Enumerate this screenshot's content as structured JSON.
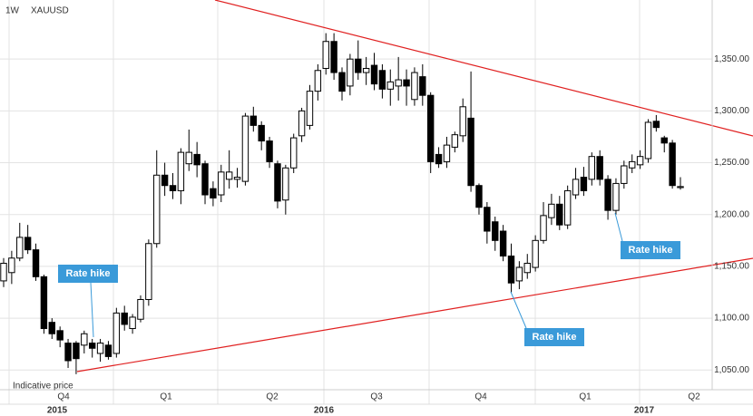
{
  "chart_data": {
    "type": "candlestick",
    "interval": "1W",
    "symbol": "XAUUSD",
    "note": "Indicative price",
    "quarters": [
      "Q4",
      "Q1",
      "Q2",
      "Q3",
      "Q4",
      "Q1",
      "Q2"
    ],
    "years": [
      "2015",
      "2016",
      "2017"
    ],
    "annotations": [
      "Rate hike",
      "Rate hike",
      "Rate hike"
    ],
    "categories": [
      null,
      null,
      null,
      null,
      null,
      null,
      null,
      null,
      null,
      null,
      null,
      null,
      null,
      null,
      null,
      null,
      null,
      null,
      null,
      null,
      null,
      null,
      null,
      null,
      null,
      null,
      null,
      null,
      null,
      null,
      null,
      null,
      null,
      null,
      null,
      null,
      null,
      null,
      null,
      null,
      null,
      null,
      null,
      null,
      null,
      null,
      null,
      null,
      null,
      null,
      null,
      null,
      null,
      null,
      null,
      null,
      null,
      null,
      null,
      null,
      null,
      null,
      null,
      null,
      null,
      null,
      null,
      null,
      null,
      null,
      null,
      null,
      null,
      null,
      null,
      null,
      null,
      null,
      null,
      null,
      null,
      null,
      null,
      null,
      null
    ],
    "open": [
      1136,
      1144,
      1158,
      1178,
      1166,
      1140,
      1096,
      1088,
      1076,
      1076,
      1074,
      1076,
      1066,
      1074,
      1066,
      1105,
      1090,
      1099,
      1118,
      1172,
      1238,
      1228,
      1223,
      1249,
      1258,
      1249,
      1225,
      1219,
      1234,
      1234,
      1232,
      1295,
      1286,
      1271,
      1249,
      1214,
      1245,
      1276,
      1286,
      1319,
      1341,
      1367,
      1337,
      1324,
      1350,
      1337,
      1344,
      1339,
      1321,
      1324,
      1330,
      1311,
      1333,
      1315,
      1258,
      1251,
      1265,
      1276,
      1293,
      1228,
      1207,
      1193,
      1184,
      1160,
      1136,
      1144,
      1149,
      1175,
      1197,
      1210,
      1190,
      1219,
      1236,
      1234,
      1256,
      1234,
      1204,
      1230,
      1245,
      1248,
      1254,
      1290,
      1274,
      1269,
      1226
    ],
    "high": [
      1158,
      1165,
      1192,
      1190,
      1172,
      1142,
      1100,
      1092,
      1080,
      1078,
      1088,
      1080,
      1080,
      1078,
      1110,
      1112,
      1104,
      1122,
      1176,
      1262,
      1250,
      1240,
      1264,
      1282,
      1270,
      1252,
      1232,
      1248,
      1262,
      1245,
      1298,
      1304,
      1290,
      1275,
      1252,
      1248,
      1278,
      1303,
      1325,
      1345,
      1375,
      1375,
      1342,
      1355,
      1368,
      1352,
      1356,
      1345,
      1340,
      1352,
      1340,
      1342,
      1345,
      1318,
      1265,
      1275,
      1280,
      1312,
      1338,
      1230,
      1212,
      1198,
      1190,
      1172,
      1155,
      1162,
      1180,
      1212,
      1220,
      1218,
      1228,
      1245,
      1246,
      1260,
      1262,
      1238,
      1235,
      1252,
      1258,
      1262,
      1292,
      1296,
      1276,
      1272,
      1236
    ],
    "low": [
      1130,
      1133,
      1155,
      1162,
      1136,
      1085,
      1080,
      1072,
      1052,
      1046,
      1066,
      1062,
      1058,
      1060,
      1062,
      1088,
      1085,
      1096,
      1112,
      1168,
      1218,
      1215,
      1210,
      1242,
      1236,
      1210,
      1208,
      1212,
      1225,
      1226,
      1228,
      1280,
      1262,
      1245,
      1206,
      1200,
      1240,
      1270,
      1282,
      1310,
      1335,
      1330,
      1310,
      1315,
      1330,
      1325,
      1320,
      1312,
      1305,
      1310,
      1305,
      1305,
      1305,
      1240,
      1245,
      1245,
      1260,
      1270,
      1222,
      1200,
      1172,
      1165,
      1155,
      1124,
      1128,
      1138,
      1145,
      1172,
      1190,
      1185,
      1186,
      1215,
      1218,
      1228,
      1228,
      1195,
      1200,
      1225,
      1240,
      1244,
      1250,
      1280,
      1260,
      1225,
      1224
    ],
    "close": [
      1153,
      1158,
      1178,
      1166,
      1140,
      1090,
      1085,
      1079,
      1059,
      1061,
      1085,
      1071,
      1076,
      1063,
      1105,
      1094,
      1101,
      1118,
      1172,
      1238,
      1228,
      1223,
      1260,
      1260,
      1248,
      1219,
      1216,
      1241,
      1241,
      1236,
      1295,
      1286,
      1271,
      1251,
      1213,
      1245,
      1274,
      1300,
      1319,
      1339,
      1367,
      1337,
      1319,
      1350,
      1337,
      1341,
      1326,
      1321,
      1328,
      1330,
      1324,
      1337,
      1315,
      1251,
      1249,
      1267,
      1277,
      1304,
      1228,
      1207,
      1184,
      1175,
      1160,
      1134,
      1149,
      1153,
      1175,
      1199,
      1210,
      1190,
      1223,
      1234,
      1223,
      1256,
      1234,
      1204,
      1230,
      1247,
      1251,
      1256,
      1289,
      1284,
      1269,
      1228,
      1227
    ],
    "up_color": "#ffffff",
    "down_color": "#000000",
    "grid": true,
    "ylim": [
      1031,
      1407
    ],
    "yticks": [
      {
        "value": 1050,
        "label": "1,050.00"
      },
      {
        "value": 1100,
        "label": "1,100.00"
      },
      {
        "value": 1150,
        "label": "1,150.00"
      },
      {
        "value": 1200,
        "label": "1,200.00"
      },
      {
        "value": 1250,
        "label": "1,250.00"
      },
      {
        "value": 1300,
        "label": "1,300.00"
      },
      {
        "value": 1350,
        "label": "1,350.00"
      }
    ]
  }
}
